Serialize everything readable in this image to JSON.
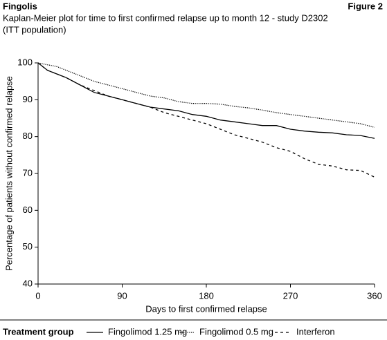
{
  "chart_data": {
    "type": "line",
    "title": "Fingolis",
    "figure_label": "Figure 2",
    "subtitle": [
      "Kaplan-Meier plot for time to first confirmed relapse up to month 12 - study D2302",
      "(ITT population)"
    ],
    "x_label": "Days to first confirmed relapse",
    "y_label": "Percentage of patients without confirmed relapse",
    "legend_title": "Treatment group",
    "x": [
      0,
      10,
      20,
      30,
      45,
      60,
      75,
      90,
      105,
      120,
      135,
      150,
      165,
      180,
      195,
      210,
      225,
      240,
      255,
      270,
      285,
      300,
      315,
      330,
      345,
      360
    ],
    "series": [
      {
        "name": "Fingolimod 1.25 mg",
        "color": "#000000",
        "line_style": "solid",
        "values": [
          100,
          98,
          97,
          96,
          94,
          92,
          91,
          90,
          89,
          88,
          87.5,
          87,
          86,
          85.5,
          84.5,
          84,
          83.5,
          83,
          83,
          82,
          81.5,
          81.2,
          81,
          80.5,
          80.3,
          79.5
        ]
      },
      {
        "name": "Fingolimod 0.5 mg",
        "color": "#000000",
        "line_style": "dotted",
        "values": [
          100,
          99.5,
          99,
          98,
          96.5,
          95,
          94,
          93,
          92,
          91,
          90.5,
          89.5,
          89,
          89,
          88.8,
          88.2,
          87.8,
          87.2,
          86.5,
          86,
          85.5,
          85,
          84.5,
          84,
          83.5,
          82.5
        ]
      },
      {
        "name": "Interferon",
        "color": "#000000",
        "line_style": "dashed",
        "values": [
          100,
          98,
          97,
          96,
          94,
          92.5,
          91,
          90,
          89,
          88,
          86.5,
          85.5,
          84.5,
          83.5,
          82,
          80.5,
          79.5,
          78.5,
          77,
          76,
          74,
          72.5,
          72,
          71,
          70.8,
          69
        ]
      }
    ],
    "xlim": [
      0,
      360
    ],
    "xticks": [
      0,
      90,
      180,
      270,
      360
    ],
    "ylim": [
      40,
      100
    ],
    "yticks": [
      40,
      50,
      60,
      70,
      80,
      90,
      100
    ],
    "grid": false
  }
}
